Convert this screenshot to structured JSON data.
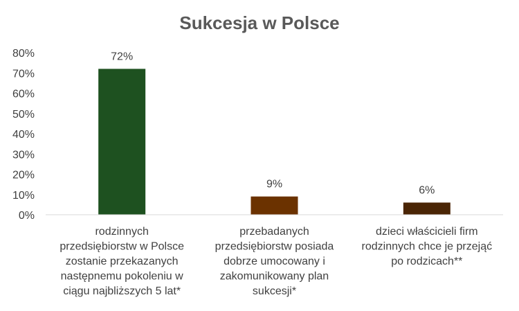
{
  "chart_data": {
    "type": "bar",
    "title": "Sukcesja w Polsce",
    "xlabel": "",
    "ylabel": "",
    "ylim": [
      0,
      80
    ],
    "y_ticks": [
      "0%",
      "10%",
      "20%",
      "30%",
      "40%",
      "50%",
      "60%",
      "70%",
      "80%"
    ],
    "y_tick_values": [
      0,
      10,
      20,
      30,
      40,
      50,
      60,
      70,
      80
    ],
    "grid": false,
    "legend": "none",
    "categories": [
      "rodzinnych przedsiębiorstw w Polsce zostanie przekazanych następnemu pokoleniu w ciągu najbliższych 5 lat*",
      "przebadanych przedsiębiorstw posiada dobrze umocowany i zakomunikowany plan sukcesji*",
      "dzieci właścicieli firm rodzinnych chce je przejąć po rodzicach**"
    ],
    "category_lines": [
      [
        "rodzinnych",
        "przedsiębiorstw w Polsce",
        "zostanie przekazanych",
        "następnemu pokoleniu w",
        "ciągu najbliższych 5 lat*"
      ],
      [
        "przebadanych",
        "przedsiębiorstw posiada",
        "dobrze umocowany i",
        "zakomunikowany plan",
        "sukcesji*"
      ],
      [
        "dzieci właścicieli firm",
        "rodzinnych chce je przejąć",
        "po rodzicach**"
      ]
    ],
    "values": [
      72,
      9,
      6
    ],
    "data_labels": [
      "72%",
      "9%",
      "6%"
    ],
    "bar_colors": [
      "#1e5120",
      "#6b3200",
      "#4a2505"
    ]
  },
  "colors": {
    "title": "#595959",
    "text": "#404040",
    "axis": "#d9d9d9",
    "background": "#ffffff"
  }
}
